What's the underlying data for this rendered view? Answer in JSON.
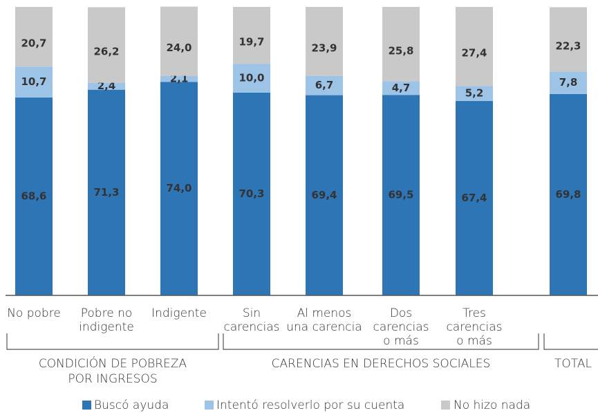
{
  "chart_data": {
    "type": "stacked_bar",
    "categories": [
      [
        "No pobre"
      ],
      [
        "Pobre no",
        "indigente"
      ],
      [
        "Indigente"
      ],
      [
        "Sin",
        "carencias"
      ],
      [
        "Al menos",
        "una carencia"
      ],
      [
        "Dos",
        "carencias",
        "o más"
      ],
      [
        "Tres",
        "carencias",
        "o más"
      ],
      [
        ""
      ]
    ],
    "groups": [
      [
        "CONDICIÓN DE POBREZA",
        "POR INGRESOS"
      ],
      [
        "CARENCIAS EN DERECHOS SOCIALES"
      ],
      [
        "TOTAL"
      ]
    ],
    "ylim": [
      0,
      100
    ],
    "series": [
      {
        "name": "Buscó ayuda",
        "color": "#2e75b6",
        "values": [
          68.6,
          71.3,
          74.0,
          70.3,
          69.4,
          69.5,
          67.4,
          69.8
        ],
        "value_labels": [
          "68,6",
          "71,3",
          "74,0",
          "70,3",
          "69,4",
          "69,5",
          "67,4",
          "69,8"
        ]
      },
      {
        "name": "Intentó resolverlo por su cuenta",
        "color": "#9dc3e6",
        "values": [
          10.7,
          2.4,
          2.1,
          10.0,
          6.7,
          4.7,
          5.2,
          7.8
        ],
        "value_labels": [
          "10,7",
          "2,4",
          "2,1",
          "10,0",
          "6,7",
          "4,7",
          "5,2",
          "7,8"
        ]
      },
      {
        "name": "No hizo nada",
        "color": "#c9c9c9",
        "values": [
          20.7,
          26.2,
          24.0,
          19.7,
          23.9,
          25.8,
          27.4,
          22.3
        ],
        "value_labels": [
          "20,7",
          "26,2",
          "24,0",
          "19,7",
          "23,9",
          "25,8",
          "27,4",
          "22,3"
        ]
      }
    ]
  }
}
